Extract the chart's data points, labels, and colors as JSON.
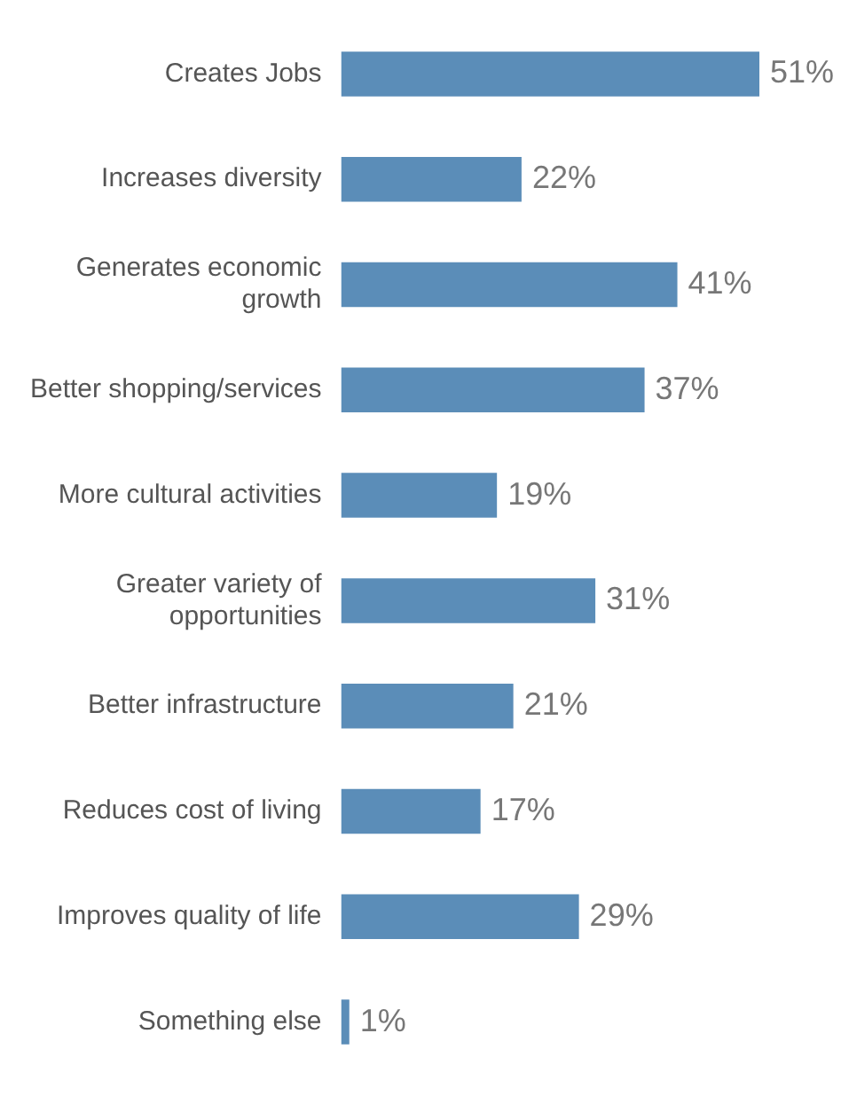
{
  "chart_data": {
    "type": "bar",
    "orientation": "horizontal",
    "categories": [
      "Creates Jobs",
      "Increases diversity",
      "Generates economic growth",
      "Better shopping/services",
      "More cultural activities",
      "Greater variety of opportunities",
      "Better infrastructure",
      "Reduces cost of living",
      "Improves quality of life",
      "Something else"
    ],
    "values": [
      51,
      22,
      41,
      37,
      19,
      31,
      21,
      17,
      29,
      1
    ],
    "value_labels": [
      "51%",
      "22%",
      "41%",
      "37%",
      "19%",
      "31%",
      "21%",
      "17%",
      "29%",
      "1%"
    ],
    "color": "#5b8db8"
  }
}
